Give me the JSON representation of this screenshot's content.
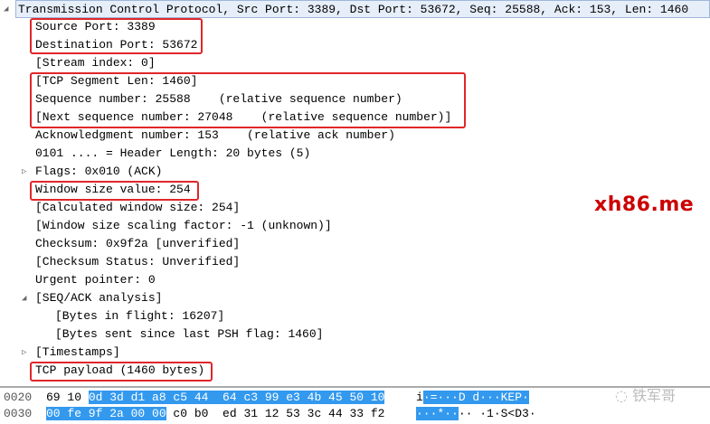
{
  "tree": {
    "header": "Transmission Control Protocol, Src Port: 3389, Dst Port: 53672, Seq: 25588, Ack: 153, Len: 1460",
    "items": [
      {
        "text": "Source Port: 3389",
        "level": 1
      },
      {
        "text": "Destination Port: 53672",
        "level": 1
      },
      {
        "text": "[Stream index: 0]",
        "level": 1
      },
      {
        "text": "[TCP Segment Len: 1460]",
        "level": 1
      },
      {
        "text": "Sequence number: 25588    (relative sequence number)",
        "level": 1
      },
      {
        "text": "[Next sequence number: 27048    (relative sequence number)]",
        "level": 1
      },
      {
        "text": "Acknowledgment number: 153    (relative ack number)",
        "level": 1
      },
      {
        "text": "0101 .... = Header Length: 20 bytes (5)",
        "level": 1
      },
      {
        "text": "Flags: 0x010 (ACK)",
        "level": 1,
        "expander": "collapsed"
      },
      {
        "text": "Window size value: 254",
        "level": 1
      },
      {
        "text": "[Calculated window size: 254]",
        "level": 1
      },
      {
        "text": "[Window size scaling factor: -1 (unknown)]",
        "level": 1
      },
      {
        "text": "Checksum: 0x9f2a [unverified]",
        "level": 1
      },
      {
        "text": "[Checksum Status: Unverified]",
        "level": 1
      },
      {
        "text": "Urgent pointer: 0",
        "level": 1
      },
      {
        "text": "[SEQ/ACK analysis]",
        "level": 1,
        "expander": "expanded"
      },
      {
        "text": "[Bytes in flight: 16207]",
        "level": 2
      },
      {
        "text": "[Bytes sent since last PSH flag: 1460]",
        "level": 2
      },
      {
        "text": "[Timestamps]",
        "level": 1,
        "expander": "collapsed"
      },
      {
        "text": "TCP payload (1460 bytes)",
        "level": 1
      }
    ]
  },
  "hex": [
    {
      "offset": "0020",
      "plain": "69 10 ",
      "selhex": "0d 3d d1 a8 c5 44  64 c3 99 e3 4b 45 50 10",
      "rest": "",
      "ascii_plain": "i",
      "ascii_sel": "·=···D d···KEP·",
      "ascii_rest": ""
    },
    {
      "offset": "0030",
      "plain": "",
      "selhex": "00 fe 9f 2a 00 00",
      "rest": " c0 b0  ed 31 12 53 3c 44 33 f2",
      "ascii_plain": "",
      "ascii_sel": "···*··",
      "ascii_rest": "·· ·1·S<D3·"
    }
  ],
  "watermark": "xh86.me",
  "wechat_watermark": "铁军哥",
  "colors": {
    "highlight_box": "#e0262b",
    "selection": "#3399ee",
    "watermark": "#cc0000"
  }
}
